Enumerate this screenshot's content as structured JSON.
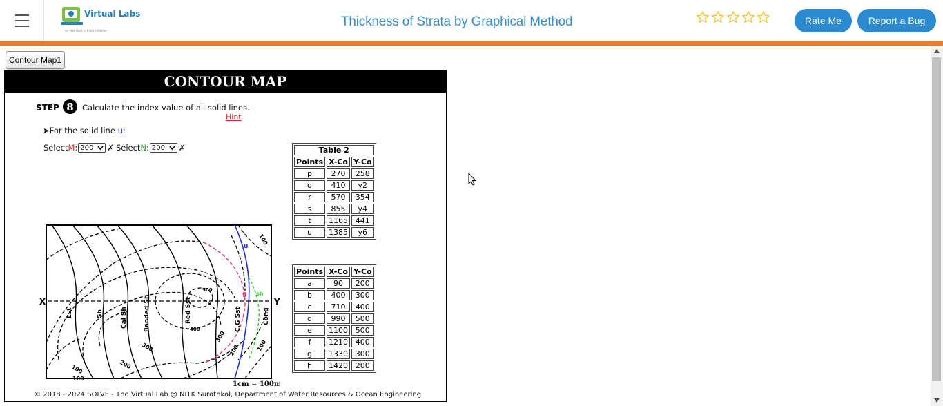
{
  "header": {
    "logo_text": "Virtual Labs",
    "logo_sub": "An MoE Govt of India Initiative",
    "title": "Thickness of Strata by Graphical Method",
    "rating_stars": 5,
    "rate_label": "Rate Me",
    "bug_label": "Report a Bug",
    "accent_color": "#f07c1f",
    "button_color": "#2a8bd0"
  },
  "tab": {
    "label": "Contour Map1"
  },
  "panel": {
    "heading": "CONTOUR MAP",
    "step_label": "STEP",
    "step_number": "8",
    "step_text": "Calculate the index value of all solid lines.",
    "hint": "Hint",
    "solid_line_prefix": "➤For the solid line ",
    "solid_line_name": "u",
    "solid_line_suffix": ":",
    "select_m_prefix": "Select ",
    "select_m_letter": "M",
    "select_m_value": "200",
    "select_n_prefix": "Select ",
    "select_n_letter": "N",
    "select_n_value": "200",
    "x_mark": "✗",
    "footer": "© 2018 - 2024 SOLVE - The Virtual Lab @ NITK Surathkal, Department of Water Resources & Ocean Engineering"
  },
  "table2": {
    "caption": "Table 2",
    "headers": [
      "Points",
      "X-Co",
      "Y-Co"
    ],
    "rows": [
      [
        "p",
        "270",
        "258"
      ],
      [
        "q",
        "410",
        "y2"
      ],
      [
        "r",
        "570",
        "354"
      ],
      [
        "s",
        "855",
        "y4"
      ],
      [
        "t",
        "1165",
        "441"
      ],
      [
        "u",
        "1385",
        "y6"
      ]
    ]
  },
  "table3": {
    "headers": [
      "Points",
      "X-Co",
      "Y-Co"
    ],
    "rows": [
      [
        "a",
        "90",
        "200"
      ],
      [
        "b",
        "400",
        "300"
      ],
      [
        "c",
        "710",
        "400"
      ],
      [
        "d",
        "990",
        "500"
      ],
      [
        "e",
        "1100",
        "500"
      ],
      [
        "f",
        "1210",
        "400"
      ],
      [
        "g",
        "1330",
        "300"
      ],
      [
        "h",
        "1420",
        "200"
      ]
    ]
  },
  "map": {
    "x_label": "X",
    "y_label": "Y",
    "scale": "1cm = 100m",
    "strata": [
      "Lst",
      "Sh",
      "Cal Sh",
      "Banded Sh",
      "Red Sst",
      "C.G Sst",
      "Cong"
    ],
    "contours": [
      "100",
      "200",
      "300",
      "400",
      "500",
      "300",
      "200",
      "100",
      "100",
      "100"
    ],
    "line_labels": [
      "u",
      "g",
      "sh"
    ]
  }
}
